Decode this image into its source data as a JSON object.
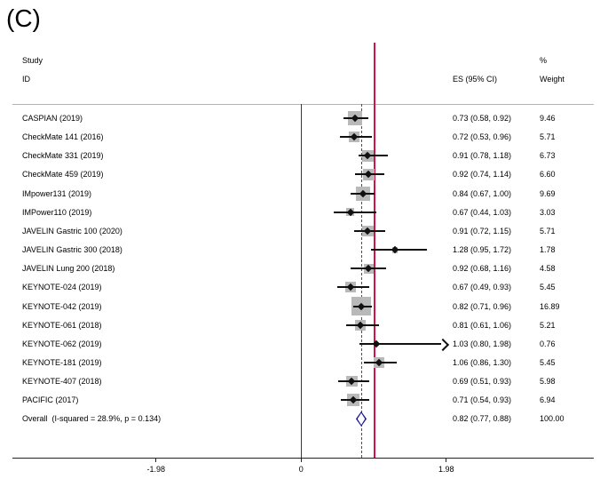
{
  "chart_data": {
    "type": "forest",
    "panel_label": "(C)",
    "columns": {
      "study": "Study",
      "id": "ID",
      "es": "ES (95% CI)",
      "pct": "%",
      "weight": "Weight"
    },
    "axis": {
      "ticks": [
        {
          "value": -1.98,
          "label": "-1.98"
        },
        {
          "value": 0,
          "label": "0"
        },
        {
          "value": 1.98,
          "label": "1.98"
        }
      ],
      "null_line_value": 1.0,
      "overall_line_value": 0.82
    },
    "studies": [
      {
        "label": "CASPIAN (2019)",
        "es": 0.73,
        "lo": 0.58,
        "hi": 0.92,
        "es_label": "0.73 (0.58, 0.92)",
        "weight": 9.46,
        "weight_label": "9.46"
      },
      {
        "label": "CheckMate 141 (2016)",
        "es": 0.72,
        "lo": 0.53,
        "hi": 0.96,
        "es_label": "0.72 (0.53, 0.96)",
        "weight": 5.71,
        "weight_label": "5.71"
      },
      {
        "label": "CheckMate 331 (2019)",
        "es": 0.91,
        "lo": 0.78,
        "hi": 1.18,
        "es_label": "0.91 (0.78, 1.18)",
        "weight": 6.73,
        "weight_label": "6.73"
      },
      {
        "label": "CheckMate 459 (2019)",
        "es": 0.92,
        "lo": 0.74,
        "hi": 1.14,
        "es_label": "0.92 (0.74, 1.14)",
        "weight": 6.6,
        "weight_label": "6.60"
      },
      {
        "label": "IMpower131 (2019)",
        "es": 0.84,
        "lo": 0.67,
        "hi": 1.0,
        "es_label": "0.84 (0.67, 1.00)",
        "weight": 9.69,
        "weight_label": "9.69"
      },
      {
        "label": "IMPower110 (2019)",
        "es": 0.67,
        "lo": 0.44,
        "hi": 1.03,
        "es_label": "0.67 (0.44, 1.03)",
        "weight": 3.03,
        "weight_label": "3.03"
      },
      {
        "label": "JAVELIN Gastric 100 (2020)",
        "es": 0.91,
        "lo": 0.72,
        "hi": 1.15,
        "es_label": "0.91 (0.72, 1.15)",
        "weight": 5.71,
        "weight_label": "5.71"
      },
      {
        "label": "JAVELIN Gastric 300 (2018)",
        "es": 1.28,
        "lo": 0.95,
        "hi": 1.72,
        "es_label": "1.28 (0.95, 1.72)",
        "weight": 1.78,
        "weight_label": "1.78"
      },
      {
        "label": "JAVELIN Lung 200 (2018)",
        "es": 0.92,
        "lo": 0.68,
        "hi": 1.16,
        "es_label": "0.92 (0.68, 1.16)",
        "weight": 4.58,
        "weight_label": "4.58"
      },
      {
        "label": "KEYNOTE-024 (2019)",
        "es": 0.67,
        "lo": 0.49,
        "hi": 0.93,
        "es_label": "0.67 (0.49, 0.93)",
        "weight": 5.45,
        "weight_label": "5.45"
      },
      {
        "label": "KEYNOTE-042 (2019)",
        "es": 0.82,
        "lo": 0.71,
        "hi": 0.96,
        "es_label": "0.82 (0.71, 0.96)",
        "weight": 16.89,
        "weight_label": "16.89"
      },
      {
        "label": "KEYNOTE-061 (2018)",
        "es": 0.81,
        "lo": 0.61,
        "hi": 1.06,
        "es_label": "0.81 (0.61, 1.06)",
        "weight": 5.21,
        "weight_label": "5.21"
      },
      {
        "label": "KEYNOTE-062 (2019)",
        "es": 1.03,
        "lo": 0.8,
        "hi": 1.98,
        "es_label": "1.03 (0.80, 1.98)",
        "weight": 0.76,
        "weight_label": "0.76",
        "arrow_hi": true
      },
      {
        "label": "KEYNOTE-181 (2019)",
        "es": 1.06,
        "lo": 0.86,
        "hi": 1.3,
        "es_label": "1.06 (0.86, 1.30)",
        "weight": 5.45,
        "weight_label": "5.45"
      },
      {
        "label": "KEYNOTE-407 (2018)",
        "es": 0.69,
        "lo": 0.51,
        "hi": 0.93,
        "es_label": "0.69 (0.51, 0.93)",
        "weight": 5.98,
        "weight_label": "5.98"
      },
      {
        "label": "PACIFIC (2017)",
        "es": 0.71,
        "lo": 0.54,
        "hi": 0.93,
        "es_label": "0.71 (0.54, 0.93)",
        "weight": 6.94,
        "weight_label": "6.94"
      }
    ],
    "overall": {
      "label": "Overall  (I-squared = 28.9%, p = 0.134)",
      "es": 0.82,
      "lo": 0.77,
      "hi": 0.88,
      "es_label": "0.82 (0.77, 0.88)",
      "weight_label": "100.00"
    },
    "colors": {
      "ref_line": "#d2124a",
      "overall_line": "#c8133f",
      "box": "#b9b9b9",
      "marker": "#111111",
      "overall_diamond": "#1a1a96",
      "separator": "#b3b3b3",
      "axis": "#222222"
    }
  }
}
